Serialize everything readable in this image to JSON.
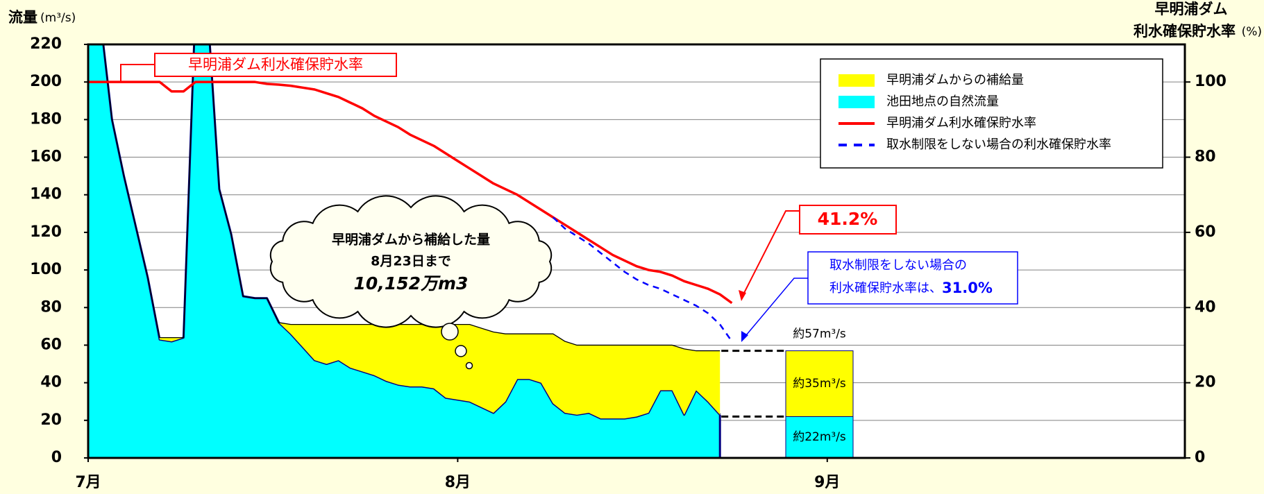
{
  "chart_data": {
    "type": "combo",
    "y_label": "流量",
    "y_unit": "(m³/s)",
    "y2_label": [
      "早明浦ダム",
      "利水確保貯水率"
    ],
    "y2_unit": "(%)",
    "x": [
      0,
      1,
      2,
      3,
      4,
      5,
      6,
      7,
      8,
      9,
      10,
      11,
      12,
      13,
      14,
      15,
      16,
      17,
      18,
      19,
      20,
      21,
      22,
      23,
      24,
      25,
      26,
      27,
      28,
      29,
      30,
      31,
      32,
      33,
      34,
      35,
      36,
      37,
      38,
      39,
      40,
      41,
      42,
      43,
      44,
      45,
      46,
      47,
      48,
      49,
      50,
      51,
      52,
      53,
      54
    ],
    "xlim": [
      0,
      92
    ],
    "xticks": [
      {
        "value": 0,
        "label": "7月"
      },
      {
        "value": 31,
        "label": "8月"
      },
      {
        "value": 62,
        "label": "9月"
      }
    ],
    "ylim": [
      0,
      220
    ],
    "yticks": [
      0,
      20,
      40,
      60,
      80,
      100,
      120,
      140,
      160,
      180,
      200,
      220
    ],
    "y2lim": [
      0,
      110
    ],
    "y2ticks": [
      0,
      20,
      40,
      60,
      80,
      100
    ],
    "grid": true,
    "series": [
      {
        "name": "池田地点の自然流量",
        "type": "area",
        "color": "#00ffff",
        "line_color": "#000080",
        "values": [
          240,
          235,
          180,
          150,
          123,
          96,
          63,
          62,
          64,
          240,
          240,
          143,
          119,
          86,
          85,
          85,
          72,
          66,
          59,
          52,
          50,
          52,
          48,
          46,
          44,
          41,
          39,
          38,
          38,
          37,
          32,
          31,
          30,
          27,
          24,
          30,
          42,
          42,
          40,
          29,
          24,
          23,
          24,
          21,
          21,
          21,
          22,
          24,
          36,
          36,
          23,
          36,
          30,
          23,
          null
        ]
      },
      {
        "name": "早明浦ダムからの補給量",
        "type": "area",
        "color": "#ffff00",
        "line_color": "#000000",
        "values": [
          0,
          0,
          0,
          0,
          0,
          0,
          1,
          2,
          0,
          0,
          0,
          0,
          0,
          0,
          0,
          0,
          0,
          5,
          12,
          19,
          21,
          19,
          23,
          25,
          27,
          30,
          32,
          33,
          33,
          34,
          39,
          40,
          41,
          42,
          43,
          36,
          24,
          24,
          26,
          37,
          38,
          37,
          36,
          39,
          39,
          39,
          38,
          36,
          24,
          24,
          35,
          21,
          27,
          34,
          null
        ]
      },
      {
        "name": "早明浦ダム利水確保貯水率",
        "type": "line",
        "axis": "y2",
        "color": "#ff0000",
        "dash": false,
        "values": [
          100,
          100,
          100,
          100,
          100,
          100,
          100,
          97.5,
          97.5,
          100,
          100,
          100,
          100,
          100,
          100,
          99.5,
          99.3,
          99,
          98.5,
          98,
          97,
          96,
          94.5,
          93,
          91,
          89.5,
          88,
          86,
          84.5,
          83,
          81,
          79,
          77,
          75,
          73,
          71.5,
          70,
          68,
          66,
          64,
          62,
          60,
          58,
          56,
          54,
          52.5,
          51,
          50,
          49.5,
          48.5,
          47,
          46,
          45,
          43.5,
          41.2
        ]
      },
      {
        "name": "取水制限をしない場合の利水確保貯水率",
        "type": "line",
        "axis": "y2",
        "color": "#0000ff",
        "dash": true,
        "values": [
          null,
          null,
          null,
          null,
          null,
          null,
          null,
          null,
          null,
          null,
          null,
          null,
          null,
          null,
          null,
          null,
          null,
          null,
          null,
          null,
          null,
          null,
          null,
          null,
          null,
          null,
          null,
          null,
          null,
          null,
          null,
          null,
          null,
          null,
          null,
          null,
          null,
          null,
          null,
          64,
          61,
          59,
          57,
          54.5,
          52,
          49.5,
          47.5,
          46,
          45,
          43.5,
          42,
          40.5,
          38.5,
          35.5,
          31.0
        ]
      }
    ],
    "legend_order": [
      1,
      0,
      2,
      3
    ],
    "summary_bar": {
      "values": [
        22,
        35
      ],
      "value_labels": [
        "約22m³/s",
        "約35m³/s"
      ],
      "total": 57,
      "total_label": "約57m³/s"
    },
    "annotations": {
      "end_rate_label": "41.2%",
      "no_restriction_line1": "取水制限をしない場合の",
      "no_restriction_line2": "利水確保貯水率は、",
      "no_restriction_value": "31.0%",
      "cloud_lines": [
        "早明浦ダムから補給した量",
        "8月23日まで",
        "10,152万m3"
      ]
    }
  }
}
